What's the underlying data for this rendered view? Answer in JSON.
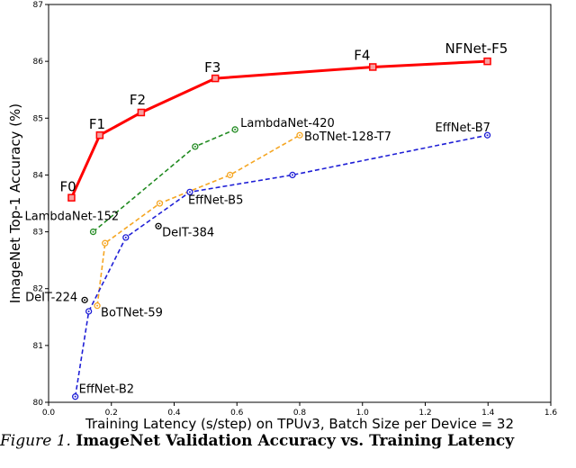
{
  "chart_data": {
    "type": "line",
    "xlabel": "Training Latency (s/step) on TPUv3, Batch Size per Device = 32",
    "ylabel": "ImageNet Top-1 Accuracy (%)",
    "xlim": [
      0.0,
      1.6
    ],
    "ylim": [
      80,
      87
    ],
    "x_ticks": [
      "0.0",
      "0.2",
      "0.4",
      "0.6",
      "0.8",
      "1.0",
      "1.2",
      "1.4",
      "1.6"
    ],
    "y_ticks": [
      "80",
      "81",
      "82",
      "83",
      "84",
      "85",
      "86",
      "87"
    ],
    "grid": false,
    "series": [
      {
        "color": "#ff0000",
        "style": "solid",
        "marker": "square",
        "points": [
          {
            "x": 0.073,
            "y": 83.6,
            "label": "F0"
          },
          {
            "x": 0.163,
            "y": 84.7,
            "label": "F1"
          },
          {
            "x": 0.295,
            "y": 85.1,
            "label": "F2"
          },
          {
            "x": 0.531,
            "y": 85.7,
            "label": "F3"
          },
          {
            "x": 1.033,
            "y": 85.9,
            "label": "F4"
          },
          {
            "x": 1.398,
            "y": 86.0,
            "label": "NFNet-F5"
          }
        ]
      },
      {
        "color": "#228b22",
        "style": "dashed",
        "marker": "circle",
        "points": [
          {
            "x": 0.142,
            "y": 83.0,
            "label": "LambdaNet-152"
          },
          {
            "x": 0.467,
            "y": 84.5,
            "label": ""
          },
          {
            "x": 0.594,
            "y": 84.8,
            "label": "LambdaNet-420"
          }
        ]
      },
      {
        "color": "#f5a623",
        "style": "dashed",
        "marker": "circle",
        "points": [
          {
            "x": 0.155,
            "y": 81.7,
            "label": "BoTNet-59"
          },
          {
            "x": 0.18,
            "y": 82.8,
            "label": ""
          },
          {
            "x": 0.354,
            "y": 83.5,
            "label": ""
          },
          {
            "x": 0.578,
            "y": 84.0,
            "label": ""
          },
          {
            "x": 0.8,
            "y": 84.7,
            "label": "BoTNet-128-T7"
          }
        ]
      },
      {
        "color": "#1f1fd6",
        "style": "dashed",
        "marker": "circle",
        "points": [
          {
            "x": 0.085,
            "y": 80.1,
            "label": "EffNet-B2"
          },
          {
            "x": 0.128,
            "y": 81.6,
            "label": ""
          },
          {
            "x": 0.246,
            "y": 82.9,
            "label": ""
          },
          {
            "x": 0.45,
            "y": 83.7,
            "label": "EffNet-B5"
          },
          {
            "x": 0.777,
            "y": 84.0,
            "label": ""
          },
          {
            "x": 1.398,
            "y": 84.7,
            "label": "EffNet-B7"
          }
        ]
      },
      {
        "color": "#000000",
        "style": "none",
        "marker": "circle",
        "points": [
          {
            "x": 0.115,
            "y": 81.8,
            "label": "DeIT-224"
          },
          {
            "x": 0.35,
            "y": 83.1,
            "label": "DeIT-384"
          }
        ]
      }
    ]
  },
  "caption": {
    "figure_label": "Figure 1.",
    "title": "ImageNet Validation Accuracy vs. Training Latency"
  }
}
